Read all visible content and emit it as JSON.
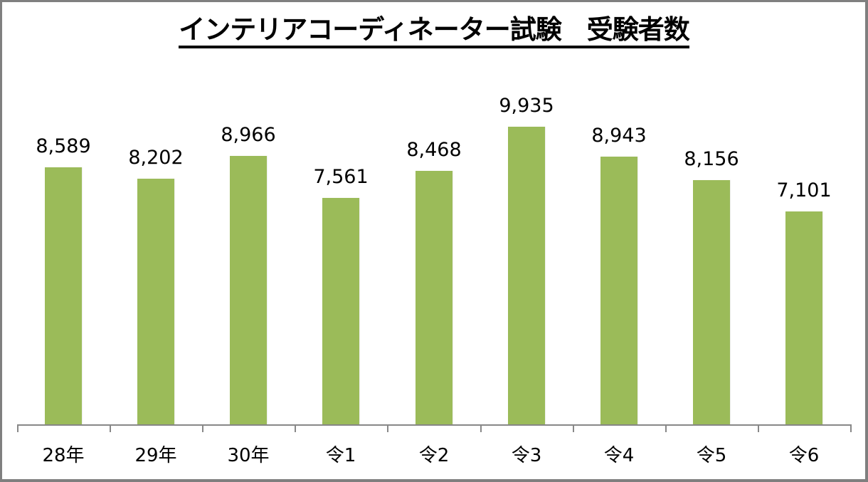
{
  "chart_data": {
    "type": "bar",
    "title": "インテリアコーディネーター試験　受験者数",
    "xlabel": "",
    "ylabel": "",
    "categories": [
      "28年",
      "29年",
      "30年",
      "令1",
      "令2",
      "令3",
      "令4",
      "令5",
      "令6"
    ],
    "values": [
      8589,
      8202,
      8966,
      7561,
      8468,
      9935,
      8943,
      8156,
      7101
    ],
    "value_labels": [
      "8,589",
      "8,202",
      "8,966",
      "7,561",
      "8,468",
      "9,935",
      "8,943",
      "8,156",
      "7,101"
    ],
    "ylim": [
      0,
      10000
    ],
    "grid": false,
    "legend": null,
    "bar_color": "#9bbb59"
  },
  "colors": {
    "bar": "#9bbb59",
    "axis": "#888888",
    "frame": "#7f7f7f"
  }
}
